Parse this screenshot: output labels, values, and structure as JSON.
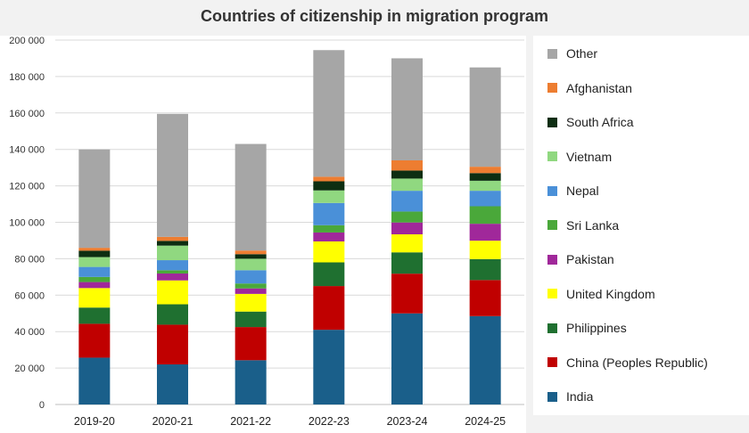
{
  "chart_data": {
    "type": "bar",
    "stacked": true,
    "title": "Countries of citizenship in migration program",
    "xlabel": "",
    "ylabel": "",
    "ylim": [
      0,
      200000
    ],
    "yticks": [
      0,
      20000,
      40000,
      60000,
      80000,
      100000,
      120000,
      140000,
      160000,
      180000,
      200000
    ],
    "ytick_labels": [
      "0",
      "20 000",
      "40 000",
      "60 000",
      "80 000",
      "100 000",
      "120 000",
      "140 000",
      "160 000",
      "180 000",
      "200 000"
    ],
    "grid": true,
    "legend_position": "right",
    "categories": [
      "2019-20",
      "2020-21",
      "2021-22",
      "2022-23",
      "2023-24",
      "2024-25"
    ],
    "series": [
      {
        "name": "India",
        "color": "#1a5f8a",
        "values": [
          25700,
          22000,
          24300,
          41000,
          50000,
          48500
        ]
      },
      {
        "name": "China (Peoples Republic)",
        "color": "#c00000",
        "values": [
          18600,
          21800,
          18200,
          24000,
          21800,
          19800
        ]
      },
      {
        "name": "Philippines",
        "color": "#1f7030",
        "values": [
          8900,
          11200,
          8500,
          13000,
          11700,
          11500
        ]
      },
      {
        "name": "United Kingdom",
        "color": "#ffff00",
        "values": [
          10700,
          13100,
          9700,
          11500,
          9900,
          10100
        ]
      },
      {
        "name": "Pakistan",
        "color": "#a0289a",
        "values": [
          3300,
          3800,
          3000,
          4900,
          6500,
          9300
        ]
      },
      {
        "name": "Sri Lanka",
        "color": "#4aa83a",
        "values": [
          2800,
          1800,
          2700,
          4000,
          6000,
          9600
        ]
      },
      {
        "name": "Nepal",
        "color": "#4a90d8",
        "values": [
          5500,
          5500,
          7300,
          12200,
          11400,
          8500
        ]
      },
      {
        "name": "Vietnam",
        "color": "#90d880",
        "values": [
          5400,
          8000,
          6300,
          6900,
          6700,
          5500
        ]
      },
      {
        "name": "South Africa",
        "color": "#0d2e12",
        "values": [
          3500,
          2600,
          2500,
          5000,
          4400,
          4200
        ]
      },
      {
        "name": "Afghanistan",
        "color": "#ed7d31",
        "values": [
          1600,
          2200,
          2000,
          2500,
          5600,
          3500
        ]
      },
      {
        "name": "Other",
        "color": "#a6a6a6",
        "values": [
          54000,
          67500,
          58500,
          69500,
          56000,
          54500
        ]
      }
    ]
  }
}
